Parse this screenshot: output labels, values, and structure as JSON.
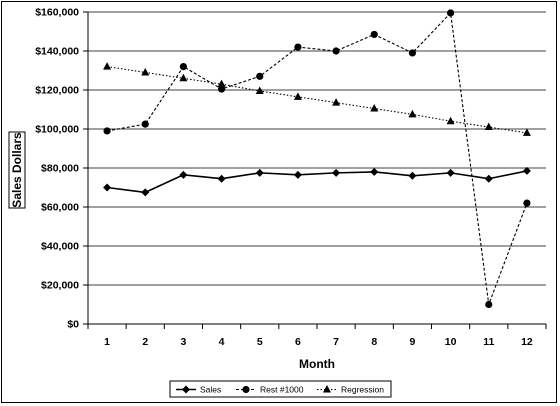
{
  "chart_data": {
    "type": "line",
    "title": "",
    "xlabel": "Month",
    "ylabel": "Sales Dollars",
    "x": [
      1,
      2,
      3,
      4,
      5,
      6,
      7,
      8,
      9,
      10,
      11,
      12
    ],
    "ylim": [
      0,
      160000
    ],
    "yticks": [
      0,
      20000,
      40000,
      60000,
      80000,
      100000,
      120000,
      140000,
      160000
    ],
    "ytick_labels": [
      "$0",
      "$20,000",
      "$40,000",
      "$60,000",
      "$80,000",
      "$100,000",
      "$120,000",
      "$140,000",
      "$160,000"
    ],
    "grid": "horizontal",
    "legend_position": "bottom",
    "series": [
      {
        "name": "Sales",
        "marker": "diamond",
        "line_style": "solid",
        "color": "#000000",
        "values": [
          70000,
          67500,
          76500,
          74500,
          77500,
          76500,
          77500,
          78000,
          76000,
          77500,
          74500,
          78500
        ]
      },
      {
        "name": "Rest #1000",
        "marker": "circle",
        "line_style": "dashed",
        "color": "#000000",
        "values": [
          99000,
          102500,
          132000,
          120500,
          127000,
          142000,
          140000,
          148500,
          139000,
          159500,
          10000,
          62000
        ]
      },
      {
        "name": "Regression",
        "marker": "triangle",
        "line_style": "dotted",
        "color": "#000000",
        "values": [
          132000,
          129000,
          126000,
          123000,
          119500,
          116500,
          113500,
          110500,
          107500,
          104000,
          101000,
          98000
        ]
      }
    ]
  }
}
